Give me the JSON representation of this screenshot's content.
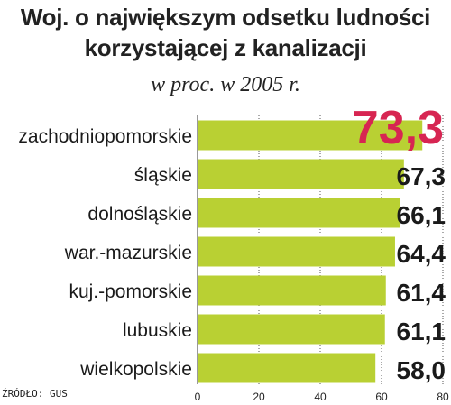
{
  "chart_data": {
    "type": "bar",
    "orientation": "horizontal",
    "title": "Woj. o największym odsetku ludności korzystającej z kanalizacji",
    "subtitle": "w proc. w 2005 r.",
    "categories": [
      "zachodniopomorskie",
      "śląskie",
      "dolnośląskie",
      "war.-mazurskie",
      "kuj.-pomorskie",
      "lubuskie",
      "wielkopolskie"
    ],
    "values": [
      73.3,
      67.3,
      66.1,
      64.4,
      61.4,
      61.1,
      58.0
    ],
    "value_labels": [
      "73,3",
      "67,3",
      "66,1",
      "64,4",
      "61,4",
      "61,1",
      "58,0"
    ],
    "xticks": [
      0,
      20,
      40,
      60,
      80
    ],
    "xlim": [
      0,
      80
    ],
    "grid": true,
    "colors": {
      "bar": "#b9d033",
      "highlight_label": "#d72552",
      "label": "#1a1a1a",
      "grid": "#555555"
    }
  },
  "source": "ŹRÓDŁO: GUS"
}
